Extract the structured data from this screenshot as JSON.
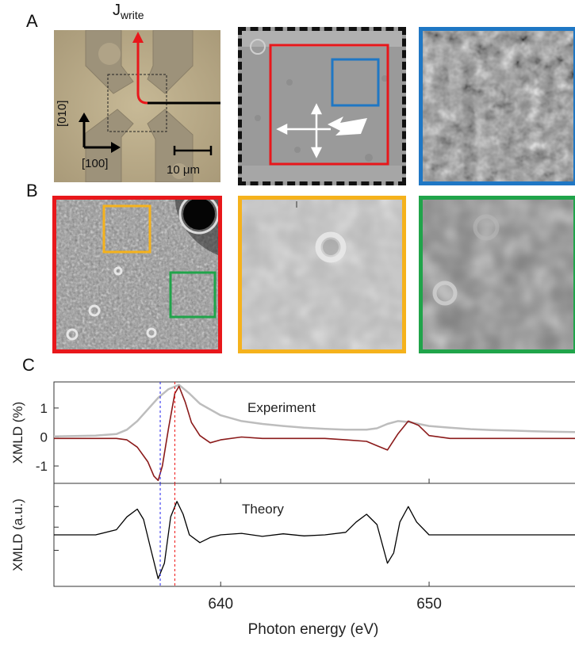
{
  "panels": {
    "a": "A",
    "b": "B",
    "c": "C"
  },
  "panel_a": {
    "current_label_main": "J",
    "current_label_sub": "write",
    "axis_y": "[010]",
    "axis_x": "[100]",
    "scale_bar": "10 μm"
  },
  "colors": {
    "red": "#e8171b",
    "blue": "#1f77c4",
    "orange": "#f5b21c",
    "green": "#20a44a",
    "dark_red": "#8b1a1a",
    "gray_curve": "#bdbdbd",
    "blue_dash": "#2222ee",
    "red_dash": "#e11"
  },
  "chart_data": {
    "type": "line",
    "xlabel": "Photon energy  (eV)",
    "xlim": [
      632,
      657
    ],
    "xticks": [
      640,
      650
    ],
    "panels": [
      {
        "ylabel": "XMLD (%)",
        "ylim": [
          -1.6,
          1.9
        ],
        "yticks": [
          1,
          0,
          -1
        ],
        "annotation": "Experiment",
        "series": [
          {
            "style": "gray",
            "x": [
              632,
              634,
              635,
              635.5,
              636,
              636.5,
              637,
              637.5,
              638,
              638.5,
              639,
              640,
              641,
              642,
              643,
              644,
              645,
              646,
              647,
              647.5,
              648,
              648.5,
              649,
              649.5,
              650,
              651,
              652,
              653,
              654,
              655,
              656,
              657
            ],
            "y": [
              0.02,
              0.05,
              0.1,
              0.25,
              0.55,
              0.95,
              1.35,
              1.65,
              1.8,
              1.5,
              1.15,
              0.75,
              0.55,
              0.45,
              0.38,
              0.32,
              0.28,
              0.25,
              0.25,
              0.3,
              0.45,
              0.55,
              0.52,
              0.45,
              0.38,
              0.32,
              0.27,
              0.24,
              0.22,
              0.2,
              0.18,
              0.17
            ]
          },
          {
            "style": "dark-red",
            "x": [
              632,
              634,
              635,
              635.5,
              636,
              636.5,
              636.8,
              637,
              637.2,
              637.5,
              637.8,
              638,
              638.3,
              638.6,
              639,
              639.5,
              640,
              641,
              642,
              643,
              644,
              645,
              646,
              647,
              647.5,
              648,
              648.5,
              649,
              649.5,
              650,
              651,
              652,
              653,
              654,
              655,
              656,
              657
            ],
            "y": [
              -0.05,
              -0.05,
              -0.05,
              -0.1,
              -0.35,
              -0.85,
              -1.35,
              -1.5,
              -1.0,
              0.3,
              1.5,
              1.75,
              1.2,
              0.5,
              0.05,
              -0.2,
              -0.1,
              0.0,
              -0.05,
              -0.05,
              -0.05,
              -0.05,
              -0.1,
              -0.15,
              -0.3,
              -0.45,
              0.1,
              0.55,
              0.4,
              0.05,
              -0.05,
              -0.05,
              -0.05,
              -0.05,
              -0.05,
              -0.05,
              -0.05
            ]
          }
        ],
        "vlines": [
          {
            "x": 637.1,
            "style": "blue-dash"
          },
          {
            "x": 637.8,
            "style": "red-dash"
          }
        ]
      },
      {
        "ylabel": "XMLD (a.u.)",
        "ylim": [
          -1.0,
          1.0
        ],
        "annotation": "Theory",
        "series": [
          {
            "style": "black",
            "x": [
              632,
              634,
              635,
              635.5,
              636,
              636.3,
              636.6,
              637,
              637.3,
              637.6,
              637.9,
              638.2,
              638.5,
              639,
              639.5,
              640,
              641,
              642,
              643,
              644,
              645,
              646,
              646.5,
              647,
              647.5,
              648,
              648.3,
              648.6,
              649,
              649.4,
              650,
              651,
              652,
              653,
              654,
              655,
              656,
              657
            ],
            "y": [
              0.0,
              0.0,
              0.1,
              0.35,
              0.5,
              0.3,
              -0.2,
              -0.85,
              -0.55,
              0.35,
              0.65,
              0.4,
              0.0,
              -0.15,
              -0.05,
              0.0,
              0.03,
              -0.03,
              0.02,
              -0.02,
              0.0,
              0.05,
              0.25,
              0.4,
              0.2,
              -0.55,
              -0.35,
              0.25,
              0.55,
              0.25,
              0.0,
              0.0,
              0.0,
              0.0,
              0.0,
              0.0,
              0.0,
              0.0
            ]
          }
        ],
        "vlines": [
          {
            "x": 637.1,
            "style": "blue-dash"
          },
          {
            "x": 637.8,
            "style": "red-dash"
          }
        ]
      }
    ]
  }
}
